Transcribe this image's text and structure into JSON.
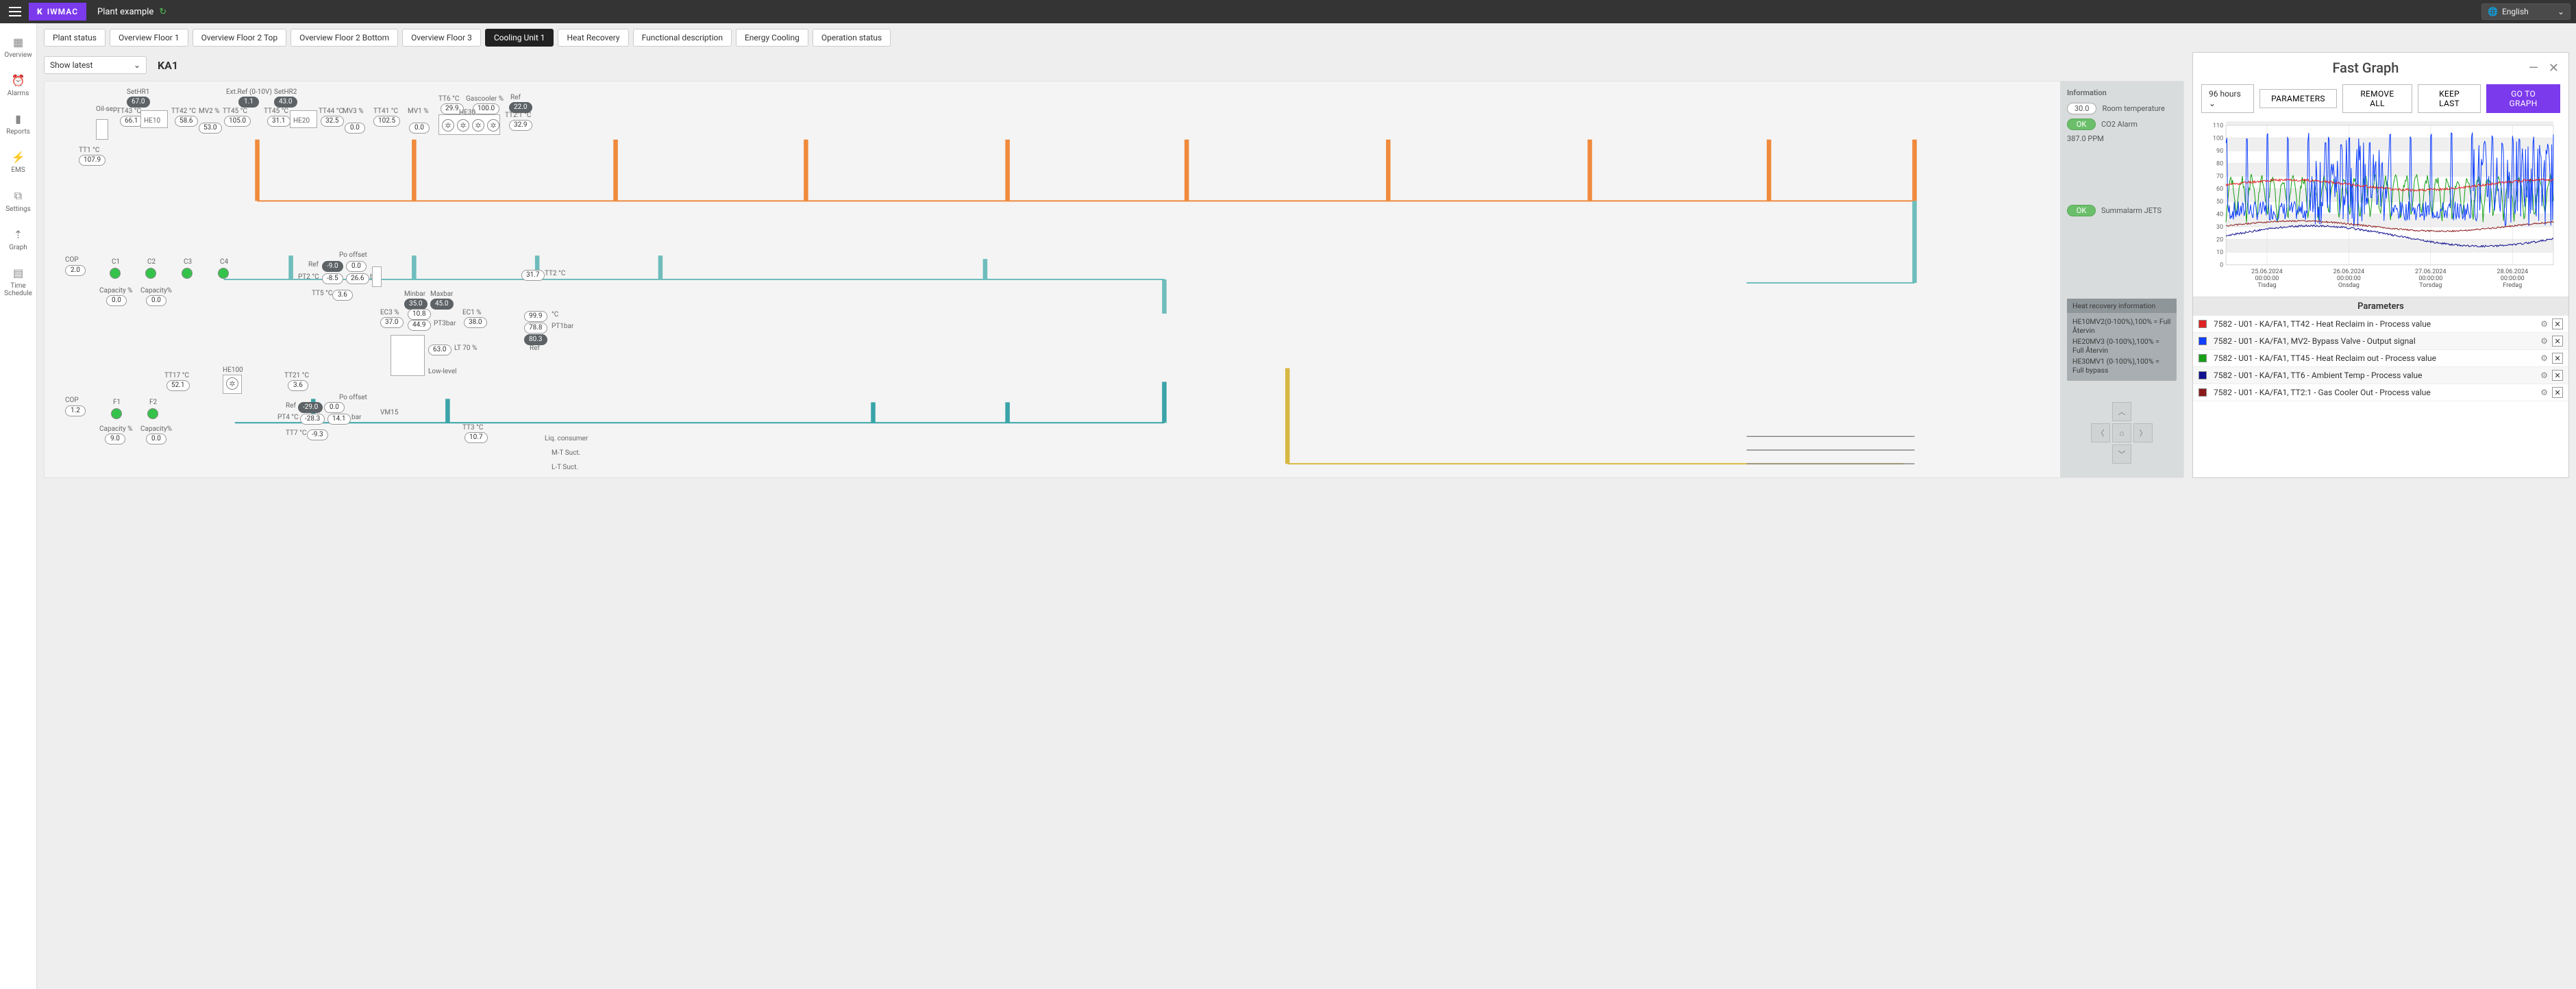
{
  "brand": "IWMAC",
  "plant": "Plant example",
  "language": "English",
  "nav": [
    {
      "id": "overview",
      "label": "Overview",
      "icon": "▦"
    },
    {
      "id": "alarms",
      "label": "Alarms",
      "icon": "⏰"
    },
    {
      "id": "reports",
      "label": "Reports",
      "icon": "▮"
    },
    {
      "id": "ems",
      "label": "EMS",
      "icon": "⚡"
    },
    {
      "id": "settings",
      "label": "Settings",
      "icon": "⧉"
    },
    {
      "id": "graph",
      "label": "Graph",
      "icon": "⇡"
    },
    {
      "id": "schedule",
      "label": "Time Schedule",
      "icon": "▤"
    }
  ],
  "tabs": [
    "Plant status",
    "Overview Floor 1",
    "Overview Floor 2 Top",
    "Overview Floor 2 Bottom",
    "Overview Floor 3",
    "Cooling Unit 1",
    "Heat Recovery",
    "Functional description",
    "Energy Cooling",
    "Operation status"
  ],
  "active_tab": "Cooling Unit 1",
  "toolbar": {
    "view_mode": "Show latest",
    "unit": "KA1"
  },
  "info": {
    "header": "Information",
    "room_temp": {
      "label": "Room temperature",
      "value": "30.0"
    },
    "co2": {
      "label": "CO2 Alarm",
      "status": "OK"
    },
    "ppm": {
      "label": "PPM",
      "value": "387.0"
    },
    "summalarm": {
      "label": "Summalarm JETS",
      "status": "OK"
    }
  },
  "hr_box": {
    "header": "Heat recovery information",
    "lines": [
      "HE10MV2(0-100%),100% = Full Återvin",
      "HE20MV3 (0-100%),100% = Full Återvin",
      "HE30MV1 (0-100%),100% = Full bypass"
    ]
  },
  "diagram": {
    "labels": {
      "oil_sep": "Oil-sep.",
      "SetHR1": "SetHR1",
      "SetHR1_v": "67.0",
      "TT43": "TT43 °C",
      "TT43_v": "66.1",
      "HE10": "HE10",
      "TT42": "TT42 °C",
      "TT42_v": "58.6",
      "MV2": "MV2 %",
      "MV2_v": "53.0",
      "ExtRef": "Ext.Ref (0-10V)",
      "ExtRef_v": "1.1",
      "TT45": "TT45 °C",
      "TT45_v": "105.0",
      "SetHR2": "SetHR2",
      "SetHR2_v": "43.0",
      "TT45b": "TT45 °C",
      "TT45b_v": "31.1",
      "HE20": "HE20",
      "TT44": "TT44 °C",
      "TT44_v": "32.5",
      "MV3": "MV3 %",
      "MV3_v": "0.0",
      "TT41": "TT41 °C",
      "TT41_v": "102.5",
      "MV1": "MV1 %",
      "MV1_v": "0.0",
      "TT6": "TT6 °C",
      "TT6_v": "29.9",
      "Gascooler": "Gascooler %",
      "Gascooler_v": "100.0",
      "HE30": "HE30",
      "Ref_t": "Ref",
      "Ref_v": "22.0",
      "TT21o": "TT2:1 °C",
      "TT21o_v": "32.9",
      "TT1": "TT1 °C",
      "TT1_v": "107.9",
      "COP1": "COP",
      "COP1_v": "2.0",
      "C1": "C1",
      "C2": "C2",
      "C3": "C3",
      "C4": "C4",
      "Capacity1": "Capacity %",
      "Capacity1_v": "0.0",
      "Capacity2": "Capacity%",
      "Capacity2_v": "0.0",
      "Ref": "Ref",
      "Ref_vv": "-9.0",
      "Ref_zero": "0.0",
      "Po_offset": "Po offset",
      "PT2": "PT2 °C",
      "PT2_v": "-8.5",
      "PT2_bar": "26.6",
      "bar": "bar",
      "TT5": "TT5 °C",
      "TT5_v": "3.6",
      "TT2": "TT2 °C",
      "TT2_v": "31.7",
      "Minbar": "Minbar",
      "Minbar_v": "35.0",
      "Maxbar": "Maxbar",
      "Maxbar_v": "45.0",
      "EC3": "EC3 %",
      "EC3_v": "37.0",
      "PT3_top": "10.8",
      "PT3_mid": "44.9",
      "PT3bar": "PT3bar",
      "EC1": "EC1 %",
      "EC1_v": "38.0",
      "PT1_top": "99.9",
      "PT1_mid": "78.8",
      "PT1_low": "80.3",
      "PT1bar": "PT1bar",
      "degC": "°C",
      "Ref_lbl": "Ref",
      "LT70": "LT 70 %",
      "LT70_v": "63.0",
      "LowLevel": "Low-level",
      "TT17": "TT17 °C",
      "TT17_v": "52.1",
      "HE100": "HE100",
      "TT21": "TT21 °C",
      "TT21_v": "3.6",
      "VM15": "VM15",
      "COP2": "COP",
      "COP2_v": "1.2",
      "F1": "F1",
      "F2": "F2",
      "CapF1": "Capacity %",
      "CapF1_v": "9.0",
      "CapF2": "Capacity%",
      "CapF2_v": "0.0",
      "Ref2": "Ref",
      "Ref2_v": "-29.0",
      "Ref2_zero": "0.0",
      "Po_offset2": "Po offset",
      "PT4": "PT4 °C",
      "PT4_v": "-28.3",
      "PT4_bar": "14.1",
      "TT7": "TT7 °C",
      "TT7_v": "-9.3",
      "TT3": "TT3 °C",
      "TT3_v": "10.7",
      "liq": "Liq. consumer",
      "mt": "M-T Suct.",
      "lt": "L-T Suct."
    }
  },
  "fastgraph": {
    "title": "Fast Graph",
    "range": "96 hours",
    "buttons": {
      "parameters": "PARAMETERS",
      "remove_all": "REMOVE ALL",
      "keep_last": "KEEP LAST",
      "go": "GO TO GRAPH"
    },
    "params_header": "Parameters",
    "chart": {
      "ylim": [
        0,
        110
      ],
      "yticks": [
        0,
        10,
        20,
        30,
        40,
        50,
        60,
        70,
        80,
        90,
        100,
        110
      ],
      "xlabels": [
        {
          "date": "25.06.2024",
          "time": "00:00:00",
          "day": "Tisdag"
        },
        {
          "date": "26.06.2024",
          "time": "00:00:00",
          "day": "Onsdag"
        },
        {
          "date": "27.06.2024",
          "time": "00:00:00",
          "day": "Torsdag"
        },
        {
          "date": "28.06.2024",
          "time": "00:00:00",
          "day": "Fredag"
        }
      ],
      "bg": "#ffffff",
      "band": "#efefef",
      "grid": "#d8d8d8",
      "series_colors": {
        "tt42": "#e02222",
        "mv2": "#1040ff",
        "tt45": "#18a018",
        "tt6": "#101090",
        "tt21": "#8b1a1a"
      }
    },
    "params": [
      {
        "color": "#e02222",
        "label": "7582 - U01 - KA/FA1, TT42 - Heat Reclaim in - Process value"
      },
      {
        "color": "#1040ff",
        "label": "7582 - U01 - KA/FA1, MV2- Bypass Valve - Output signal"
      },
      {
        "color": "#18a018",
        "label": "7582 - U01 - KA/FA1, TT45 - Heat Reclaim out - Process value"
      },
      {
        "color": "#101090",
        "label": "7582 - U01 - KA/FA1, TT6 - Ambient Temp - Process value"
      },
      {
        "color": "#8b1a1a",
        "label": "7582 - U01 - KA/FA1, TT2:1 - Gas Cooler Out - Process value"
      }
    ]
  }
}
